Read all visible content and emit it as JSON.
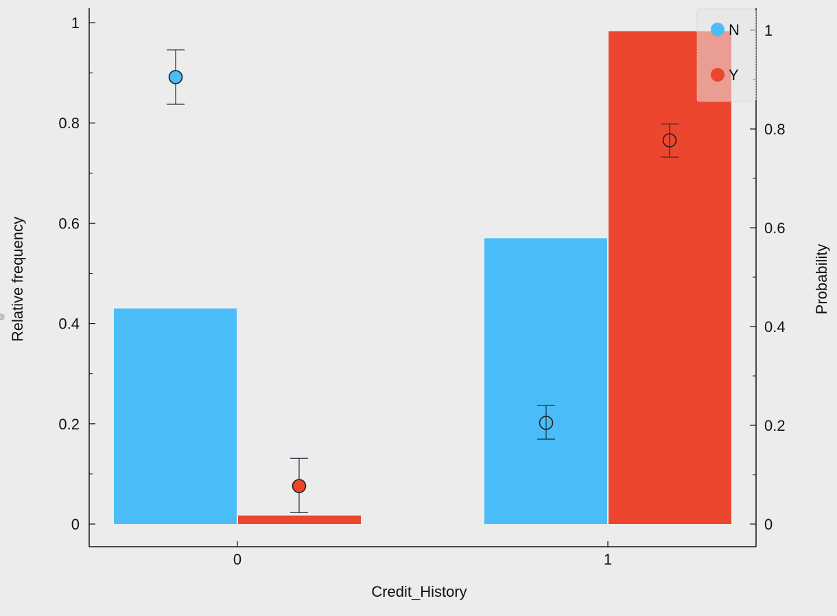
{
  "chart_data": {
    "type": "bar",
    "xlabel": "Credit_History",
    "ylabel": "Relative frequency",
    "y2label": "Probability",
    "categories": [
      "0",
      "1"
    ],
    "ylim": [
      -0.045,
      1.03
    ],
    "y2lim": [
      -0.045,
      1.03
    ],
    "yticks": [
      "0",
      "0.2",
      "0.4",
      "0.6",
      "0.8",
      "1"
    ],
    "y2ticks": [
      "0",
      "0.2",
      "0.4",
      "0.6",
      "0.8",
      "1"
    ],
    "legend": {
      "position": "top-right",
      "entries": [
        "N",
        "Y"
      ]
    },
    "series": [
      {
        "name": "N",
        "color": "#4ABDF8",
        "bar_values": [
          0.43,
          0.57
        ],
        "probability": [
          0.905,
          0.205
        ],
        "prob_error_low": [
          0.85,
          0.172
        ],
        "prob_error_high": [
          0.96,
          0.24
        ],
        "marker_filled": [
          true,
          false
        ]
      },
      {
        "name": "Y",
        "color": "#ED462F",
        "bar_values": [
          0.017,
          0.983
        ],
        "probability": [
          0.077,
          0.777
        ],
        "prob_error_low": [
          0.023,
          0.743
        ],
        "prob_error_high": [
          0.133,
          0.81
        ],
        "marker_filled": [
          true,
          false
        ]
      }
    ]
  }
}
